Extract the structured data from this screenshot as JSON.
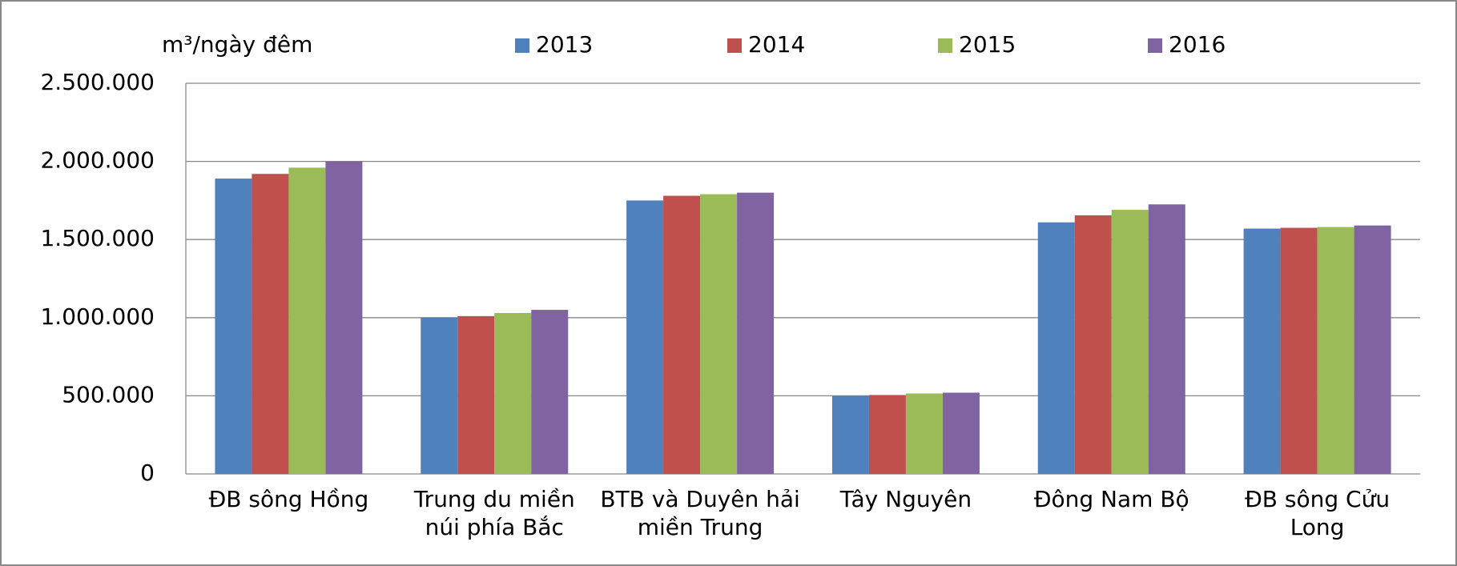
{
  "chart_data": {
    "type": "bar",
    "y_label": "m³/ngày đêm",
    "categories": [
      "ĐB sông Hồng",
      "Trung du miền núi phía Bắc",
      "BTB và Duyên hải miền Trung",
      "Tây Nguyên",
      "Đông Nam Bộ",
      "ĐB sông Cửu Long"
    ],
    "series": [
      {
        "name": "2013",
        "color": "#4f81bd",
        "values": [
          1890000,
          1000000,
          1750000,
          500000,
          1610000,
          1570000
        ]
      },
      {
        "name": "2014",
        "color": "#c0504d",
        "values": [
          1920000,
          1010000,
          1780000,
          505000,
          1655000,
          1575000
        ]
      },
      {
        "name": "2015",
        "color": "#9bbb59",
        "values": [
          1960000,
          1030000,
          1790000,
          515000,
          1690000,
          1580000
        ]
      },
      {
        "name": "2016",
        "color": "#8064a2",
        "values": [
          2000000,
          1050000,
          1800000,
          520000,
          1725000,
          1590000
        ]
      }
    ],
    "ylim": [
      0,
      2500000
    ],
    "yticks": [
      0,
      {
        "value": 500000,
        "label": "500.000"
      },
      {
        "value": 1000000,
        "label": "1.000.000"
      },
      {
        "value": 1500000,
        "label": "1.500.000"
      },
      {
        "value": 2000000,
        "label": "2.000.000"
      },
      {
        "value": 2500000,
        "label": "2.500.000"
      }
    ],
    "grid": true,
    "legend": "top"
  }
}
